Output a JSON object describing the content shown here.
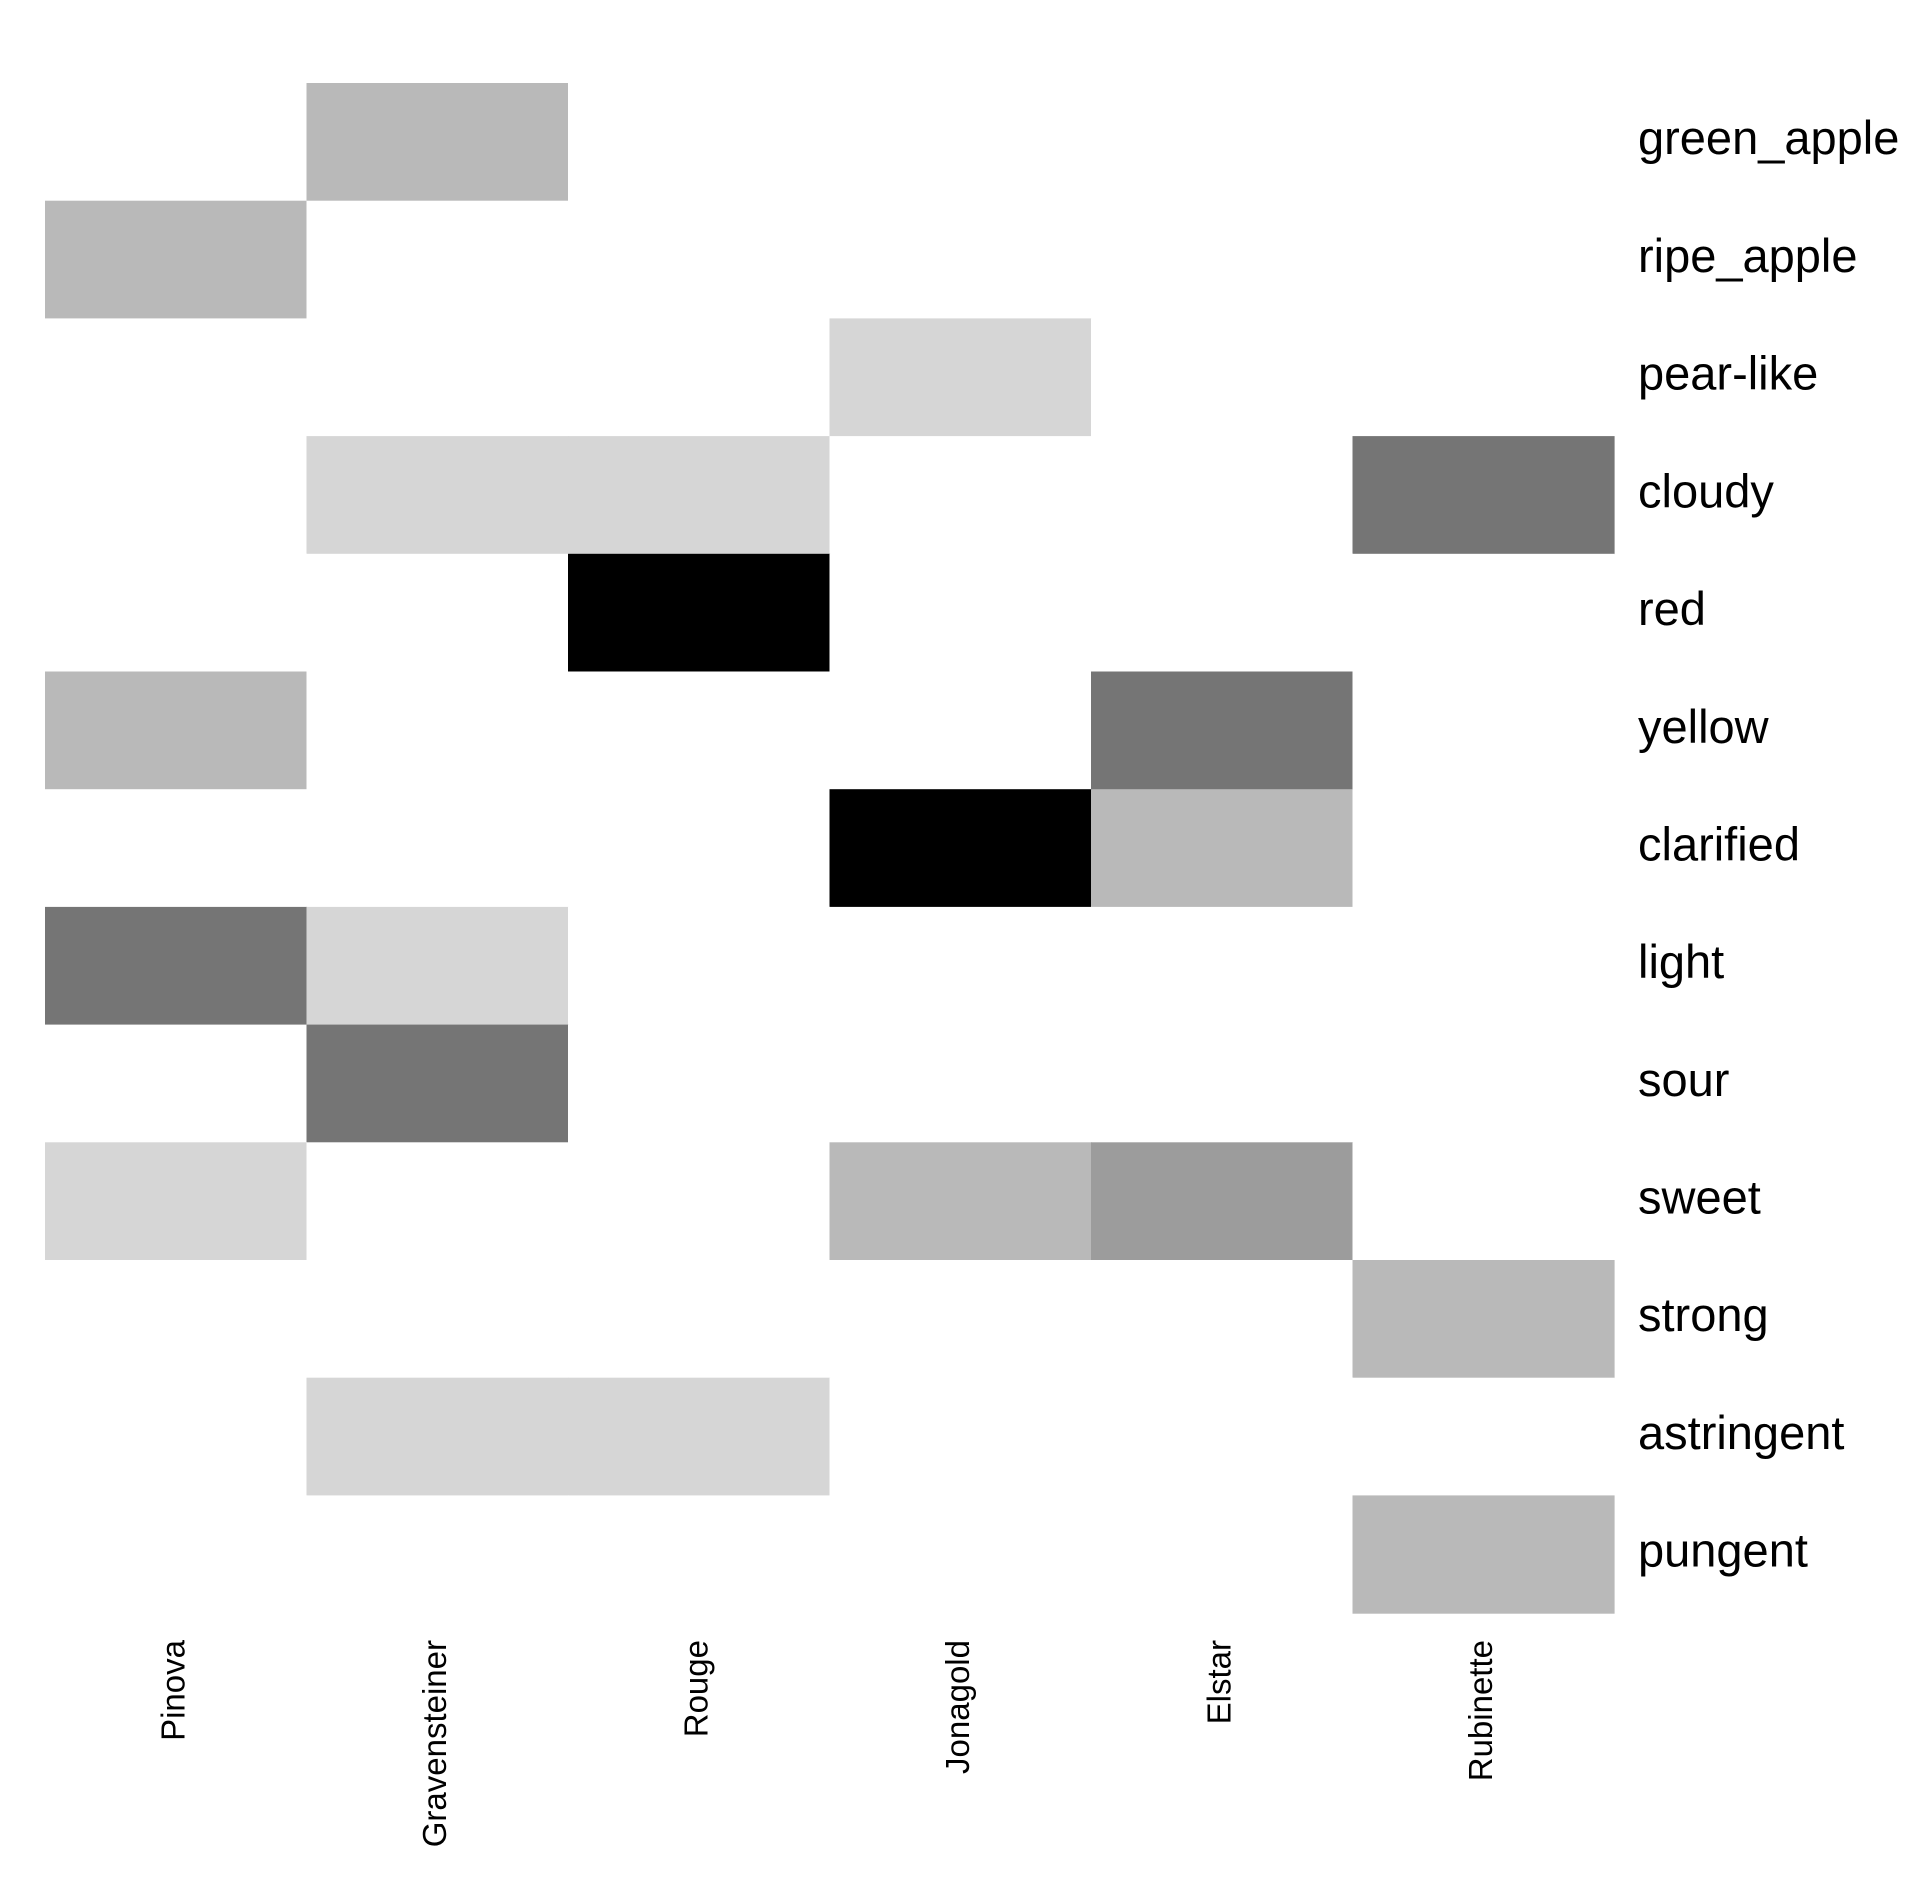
{
  "chart_data": {
    "type": "heatmap",
    "title": "",
    "xlabel": "",
    "ylabel": "",
    "columns": [
      "Pinova",
      "Gravensteiner",
      "Rouge",
      "Jonagold",
      "Elstar",
      "Rubinette"
    ],
    "rows": [
      "green_apple",
      "ripe_apple",
      "pear-like",
      "cloudy",
      "red",
      "yellow",
      "clarified",
      "light",
      "sour",
      "sweet",
      "strong",
      "astringent",
      "pungent"
    ],
    "values": [
      [
        0,
        2,
        0,
        0,
        0,
        0
      ],
      [
        2,
        0,
        0,
        0,
        0,
        0
      ],
      [
        0,
        0,
        0,
        1,
        0,
        0
      ],
      [
        0,
        1,
        1,
        0,
        0,
        4
      ],
      [
        0,
        0,
        5,
        0,
        0,
        0
      ],
      [
        2,
        0,
        0,
        0,
        4,
        0
      ],
      [
        0,
        0,
        0,
        5,
        2,
        0
      ],
      [
        4,
        1,
        0,
        0,
        0,
        0
      ],
      [
        0,
        4,
        0,
        0,
        0,
        0
      ],
      [
        1,
        0,
        0,
        2,
        3,
        0
      ],
      [
        0,
        0,
        0,
        0,
        0,
        2
      ],
      [
        0,
        1,
        1,
        0,
        0,
        0
      ],
      [
        0,
        0,
        0,
        0,
        0,
        2
      ]
    ],
    "level_colors": [
      "#ffffff",
      "#d6d6d6",
      "#b9b9b9",
      "#9c9c9c",
      "#757575",
      "#000000"
    ],
    "grid": false,
    "legend": "none",
    "row_label_position": "right",
    "column_label_position": "bottom"
  }
}
